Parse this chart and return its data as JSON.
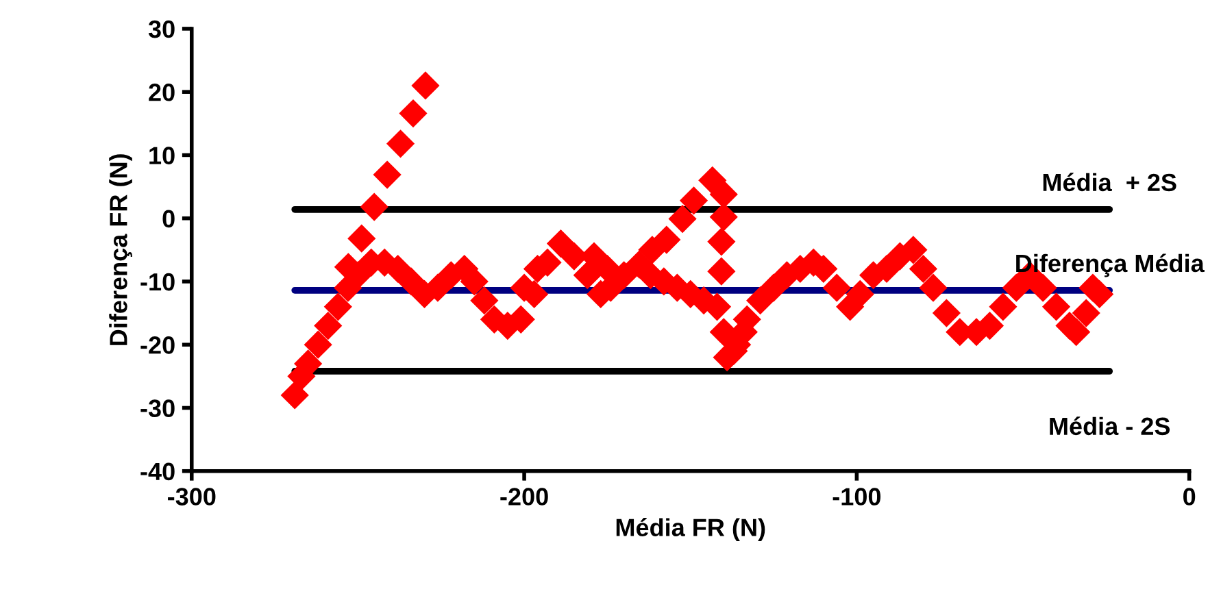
{
  "chart_data": {
    "type": "scatter",
    "xlabel": "Média FR (N)",
    "ylabel": "Diferença FR (N)",
    "xlim": [
      -300,
      0
    ],
    "xticks": [
      -300,
      -200,
      -100,
      0
    ],
    "ylim": [
      -40,
      30
    ],
    "yticks": [
      -40,
      -30,
      -20,
      -10,
      0,
      10,
      20,
      30
    ],
    "grid": false,
    "legend": false,
    "marker": "diamond",
    "series": [
      {
        "type": "line",
        "marker": "none",
        "name": "Média  + 2S",
        "color": "#000000",
        "x": [
          -269,
          -24
        ],
        "values": [
          1.4,
          1.4
        ]
      },
      {
        "type": "line",
        "marker": "none",
        "name": "Diferença Média",
        "color": "#000080",
        "x": [
          -269,
          -24
        ],
        "values": [
          -11.4,
          -11.4
        ]
      },
      {
        "type": "line",
        "marker": "none",
        "name": "Média - 2S",
        "color": "#000000",
        "x": [
          -269,
          -24
        ],
        "values": [
          -24.2,
          -24.2
        ]
      },
      {
        "color": "#ff0000",
        "x": [
          -269,
          -267,
          -265,
          -262,
          -259,
          -256,
          -253,
          -250,
          -246,
          -242,
          -238,
          -234,
          -230,
          -226,
          -222,
          -218,
          -215,
          -212,
          -209,
          -205,
          -201,
          -200,
          -196,
          -197,
          -193,
          -189,
          -185,
          -181,
          -177,
          -174,
          -179,
          -175,
          -170,
          -162,
          -158,
          -154,
          -150,
          -146,
          -142,
          -140,
          -139,
          -137,
          -134,
          -136,
          -133,
          -129,
          -125,
          -121,
          -117,
          -113,
          -110,
          -106,
          -102,
          -99,
          -95,
          -91,
          -87,
          -83,
          -80,
          -77,
          -73,
          -69,
          -64,
          -60,
          -56,
          -52,
          -48,
          -44,
          -40,
          -36,
          -34,
          -31,
          -29,
          -27,
          -252.9,
          -248.9,
          -245.1,
          -241.2,
          -237.2,
          -233.4,
          -229.7,
          -165.4,
          -161.5,
          -157.2,
          -152.4,
          -149,
          -143.4,
          -140,
          -140,
          -140.7,
          -140.7
        ],
        "values": [
          -28,
          -25,
          -23,
          -20,
          -17,
          -14,
          -11,
          -9,
          -7,
          -7,
          -8,
          -10,
          -12,
          -11,
          -9,
          -8,
          -10,
          -13,
          -16,
          -17,
          -16,
          -11,
          -8,
          -12,
          -7,
          -4,
          -6,
          -9,
          -12,
          -11,
          -6,
          -8,
          -9,
          -9,
          -10,
          -11,
          -12,
          -13,
          -14,
          -18,
          -22,
          -21,
          -18,
          -20,
          -16,
          -13,
          -11,
          -9,
          -8,
          -7,
          -8,
          -11,
          -14,
          -12,
          -9,
          -8,
          -6,
          -5,
          -8,
          -11,
          -15,
          -18,
          -18,
          -17,
          -14,
          -11,
          -9,
          -11,
          -14,
          -17,
          -18,
          -15,
          -11,
          -12,
          -7.7,
          -3.2,
          1.8,
          6.9,
          11.8,
          16.6,
          21.0,
          -7.3,
          -5,
          -3.4,
          -0.1,
          2.8,
          6,
          3.8,
          0.2,
          -3.7,
          -8.4
        ]
      }
    ]
  }
}
